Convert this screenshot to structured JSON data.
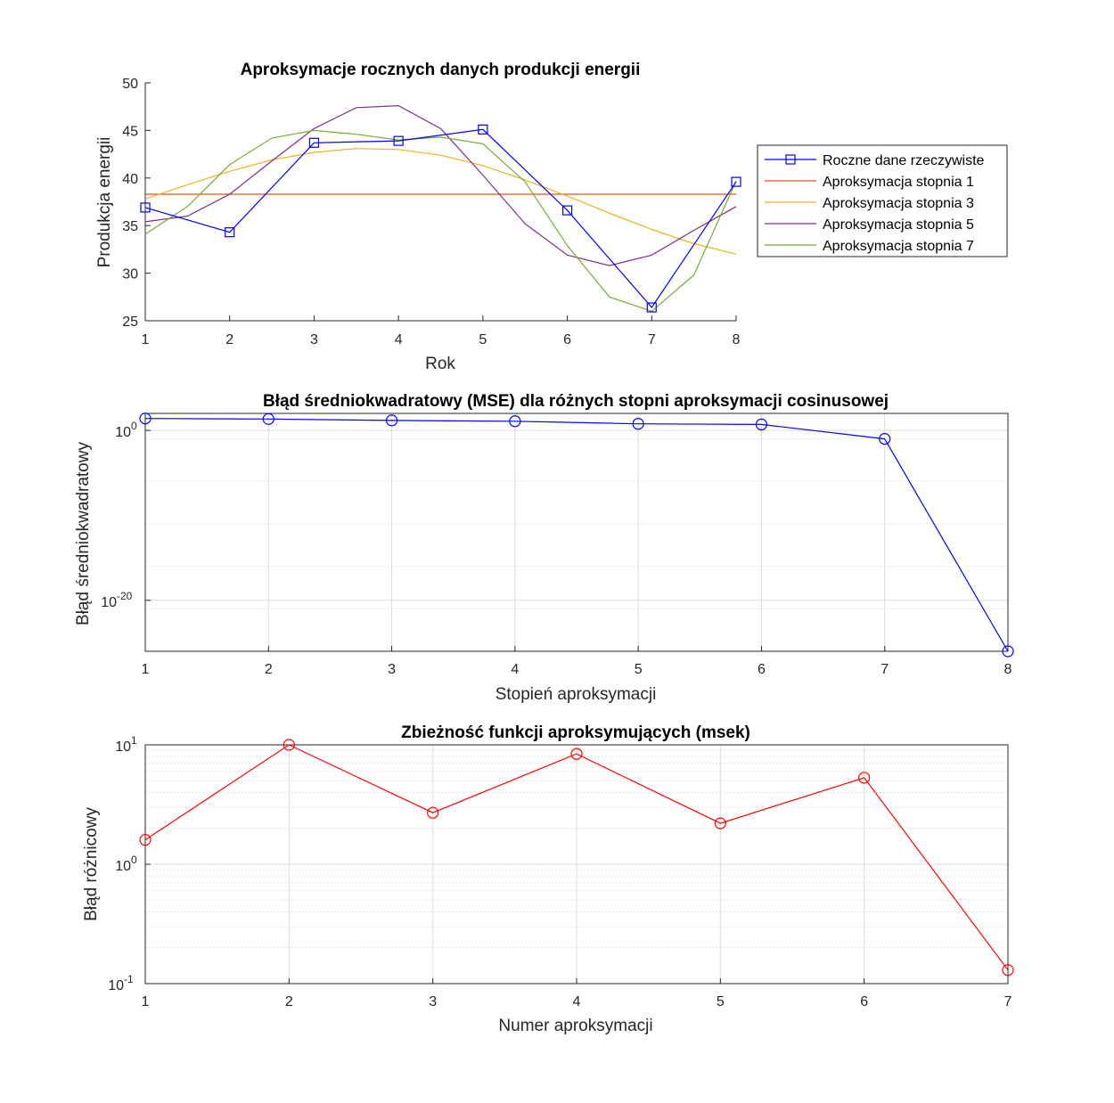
{
  "chart_data": [
    {
      "type": "line",
      "title": "Aproksymacje rocznych danych produkcji energii",
      "xlabel": "Rok",
      "ylabel": "Produkcja energii",
      "xlim": [
        1,
        8
      ],
      "ylim": [
        25,
        50
      ],
      "xticks": [
        "1",
        "2",
        "3",
        "4",
        "5",
        "6",
        "7",
        "8"
      ],
      "yticks": [
        "25",
        "30",
        "35",
        "40",
        "45",
        "50"
      ],
      "grid": false,
      "legend_placement": "outside-right",
      "series": [
        {
          "name": "Roczne dane rzeczywiste",
          "color": "#0000ff",
          "marker": "square",
          "x": [
            1,
            2,
            3,
            4,
            5,
            6,
            7,
            8
          ],
          "y": [
            36.9,
            34.3,
            43.7,
            43.9,
            45.1,
            36.6,
            26.4,
            39.6
          ]
        },
        {
          "name": "Aproksymacja stopnia 1",
          "color": "#d95319",
          "x": [
            1,
            8
          ],
          "y": [
            38.3,
            38.3
          ]
        },
        {
          "name": "Aproksymacja stopnia 3",
          "color": "#edb120",
          "x": [
            1,
            1.5,
            2,
            2.5,
            3,
            3.5,
            4,
            4.5,
            5,
            5.5,
            6,
            6.5,
            7,
            7.5,
            8
          ],
          "y": [
            37.8,
            39.3,
            40.7,
            41.9,
            42.7,
            43.1,
            43.0,
            42.4,
            41.3,
            39.8,
            38.1,
            36.3,
            34.6,
            33.1,
            32.0
          ]
        },
        {
          "name": "Aproksymacja stopnia 5",
          "color": "#7e2f8e",
          "x": [
            1,
            1.5,
            2,
            2.5,
            3,
            3.5,
            4,
            4.5,
            5,
            5.5,
            6,
            6.5,
            7,
            7.5,
            8
          ],
          "y": [
            35.4,
            36.0,
            38.3,
            41.8,
            45.2,
            47.4,
            47.6,
            45.2,
            40.3,
            35.2,
            31.9,
            30.8,
            31.9,
            34.5,
            37.0
          ]
        },
        {
          "name": "Aproksymacja stopnia 7",
          "color": "#77ac30",
          "x": [
            1,
            1.5,
            2,
            2.5,
            3,
            3.5,
            4,
            4.5,
            5,
            5.5,
            6,
            6.5,
            7,
            7.5,
            8
          ],
          "y": [
            34.1,
            37.0,
            41.4,
            44.2,
            45.0,
            44.6,
            44.0,
            44.3,
            43.6,
            39.6,
            32.9,
            27.5,
            26.0,
            29.8,
            39.7
          ]
        }
      ]
    },
    {
      "type": "line",
      "title": "Błąd średniokwadratowy (MSE) dla różnych stopni aproksymacji cosinusowej",
      "xlabel": "Stopień aproksymacji",
      "ylabel": "Błąd średniokwadratowy",
      "xlim": [
        1,
        8
      ],
      "yscale": "log",
      "ylim_exp": [
        -26,
        2
      ],
      "xticks": [
        "1",
        "2",
        "3",
        "4",
        "5",
        "6",
        "7",
        "8"
      ],
      "yticks": [
        {
          "base": "10",
          "exp": "-20",
          "value_exp": -20
        },
        {
          "base": "10",
          "exp": "0",
          "value_exp": 0
        }
      ],
      "grid": true,
      "series": [
        {
          "color": "#0000ff",
          "marker": "circle",
          "x": [
            1,
            2,
            3,
            4,
            5,
            6,
            7,
            8
          ],
          "y": [
            25,
            22,
            15,
            12,
            6,
            5,
            0.1,
            1e-26
          ]
        }
      ]
    },
    {
      "type": "line",
      "title": "Zbieżność funkcji aproksymujących (msek)",
      "xlabel": "Numer aproksymacji",
      "ylabel": "Błąd różnicowy",
      "xlim": [
        1,
        7
      ],
      "yscale": "log",
      "ylim_exp": [
        -1,
        1
      ],
      "xticks": [
        "1",
        "2",
        "3",
        "4",
        "5",
        "6",
        "7"
      ],
      "yticks": [
        {
          "base": "10",
          "exp": "-1",
          "value_exp": -1
        },
        {
          "base": "10",
          "exp": "0",
          "value_exp": 0
        },
        {
          "base": "10",
          "exp": "1",
          "value_exp": 1
        }
      ],
      "grid": true,
      "series": [
        {
          "color": "#ff0000",
          "marker": "circle",
          "x": [
            1,
            2,
            3,
            4,
            5,
            6,
            7
          ],
          "y": [
            1.6,
            10,
            2.7,
            8.4,
            2.2,
            5.3,
            0.13
          ]
        }
      ]
    }
  ]
}
